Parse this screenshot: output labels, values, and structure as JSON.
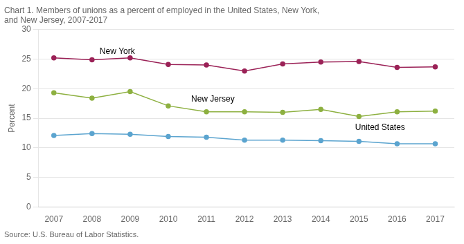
{
  "chart_data": {
    "type": "line",
    "title": [
      "Chart 1. Members of unions as a percent of employed in the United States, New York,",
      "and New Jersey, 2007-2017"
    ],
    "y_label": "Percent",
    "source": "Source: U.S. Bureau of Labor Statistics.",
    "x": [
      2007,
      2008,
      2009,
      2010,
      2011,
      2012,
      2013,
      2014,
      2015,
      2016,
      2017
    ],
    "series": [
      {
        "name": "New York",
        "color": "#9B2257",
        "values": [
          25.2,
          24.9,
          25.2,
          24.1,
          24.0,
          23.0,
          24.2,
          24.5,
          24.6,
          23.6,
          23.7
        ]
      },
      {
        "name": "New Jersey",
        "color": "#8DB040",
        "values": [
          19.3,
          18.4,
          19.5,
          17.1,
          16.1,
          16.1,
          16.0,
          16.5,
          15.3,
          16.1,
          16.2
        ]
      },
      {
        "name": "United States",
        "color": "#5BA4CF",
        "values": [
          12.1,
          12.4,
          12.3,
          11.9,
          11.8,
          11.3,
          11.3,
          11.2,
          11.1,
          10.7,
          10.7
        ]
      }
    ],
    "annotations": [
      {
        "text": "New York",
        "x": 2008.2,
        "y": 25.6
      },
      {
        "text": "New Jersey",
        "x": 2010.6,
        "y": 17.5
      },
      {
        "text": "United States",
        "x": 2014.9,
        "y": 12.7
      }
    ],
    "xlim": [
      2006.6,
      2017.5
    ],
    "xticks": [
      2007,
      2008,
      2009,
      2010,
      2011,
      2012,
      2013,
      2014,
      2015,
      2016,
      2017
    ],
    "ylim": [
      0,
      30
    ],
    "yticks": [
      0,
      5,
      10,
      15,
      20,
      25,
      30
    ],
    "grid": true,
    "marker": "circle"
  }
}
